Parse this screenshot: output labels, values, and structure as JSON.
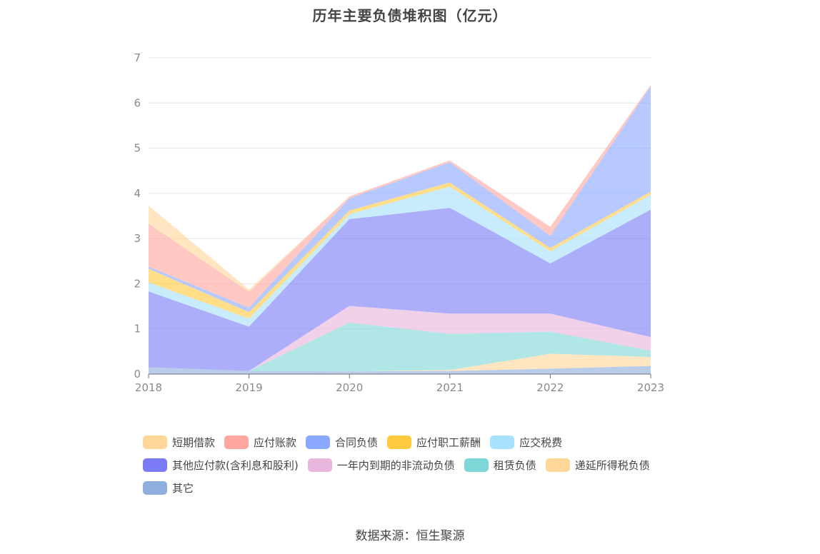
{
  "chart_data": {
    "type": "area",
    "stacked": true,
    "title": "历年主要负债堆积图（亿元）",
    "x": [
      "2018",
      "2019",
      "2020",
      "2021",
      "2022",
      "2023"
    ],
    "ylim": [
      0,
      7
    ],
    "yticks": [
      "0",
      "1",
      "2",
      "3",
      "4",
      "5",
      "6",
      "7"
    ],
    "grid": true,
    "legend_position": "bottom",
    "series": [
      {
        "name": "其它",
        "color": "#8eaede",
        "values": [
          0.15,
          0.07,
          0.06,
          0.07,
          0.12,
          0.18
        ]
      },
      {
        "name": "递延所得税负债",
        "color": "#ffd699",
        "values": [
          0.0,
          0.0,
          0.0,
          0.02,
          0.33,
          0.2
        ]
      },
      {
        "name": "租赁负债",
        "color": "#7fd6d6",
        "values": [
          0.0,
          0.0,
          1.08,
          0.8,
          0.49,
          0.14
        ]
      },
      {
        "name": "一年内到期的非流动负债",
        "color": "#e8b5dd",
        "values": [
          0.0,
          0.0,
          0.37,
          0.45,
          0.4,
          0.3
        ]
      },
      {
        "name": "其他应付款(含利息和股利)",
        "color": "#7b7cf5",
        "values": [
          1.68,
          0.98,
          1.92,
          2.34,
          1.11,
          2.82
        ]
      },
      {
        "name": "应交税费",
        "color": "#a8e1fb",
        "values": [
          0.2,
          0.18,
          0.11,
          0.47,
          0.27,
          0.33
        ]
      },
      {
        "name": "应付职工薪酬",
        "color": "#ffc93d",
        "values": [
          0.3,
          0.14,
          0.08,
          0.09,
          0.07,
          0.07
        ]
      },
      {
        "name": "合同负债",
        "color": "#8aa8ff",
        "values": [
          0.05,
          0.1,
          0.27,
          0.45,
          0.27,
          2.33
        ]
      },
      {
        "name": "应付账款",
        "color": "#ffa69e",
        "values": [
          0.95,
          0.35,
          0.04,
          0.04,
          0.2,
          0.03
        ]
      },
      {
        "name": "短期借款",
        "color": "#ffd699",
        "values": [
          0.4,
          0.05,
          0.0,
          0.0,
          0.0,
          0.0
        ]
      }
    ]
  },
  "legend": [
    [
      {
        "label": "短期借款",
        "color": "#ffd699"
      },
      {
        "label": "应付账款",
        "color": "#ffa69e"
      },
      {
        "label": "合同负债",
        "color": "#8aa8ff"
      },
      {
        "label": "应付职工薪酬",
        "color": "#ffc93d"
      },
      {
        "label": "应交税费",
        "color": "#a8e1fb"
      }
    ],
    [
      {
        "label": "其他应付款(含利息和股利)",
        "color": "#7b7cf5"
      },
      {
        "label": "一年内到期的非流动负债",
        "color": "#e8b5dd"
      },
      {
        "label": "租赁负债",
        "color": "#7fd6d6"
      },
      {
        "label": "递延所得税负债",
        "color": "#ffd699"
      }
    ],
    [
      {
        "label": "其它",
        "color": "#8eaede"
      }
    ]
  ],
  "source_text": "数据来源：恒生聚源"
}
